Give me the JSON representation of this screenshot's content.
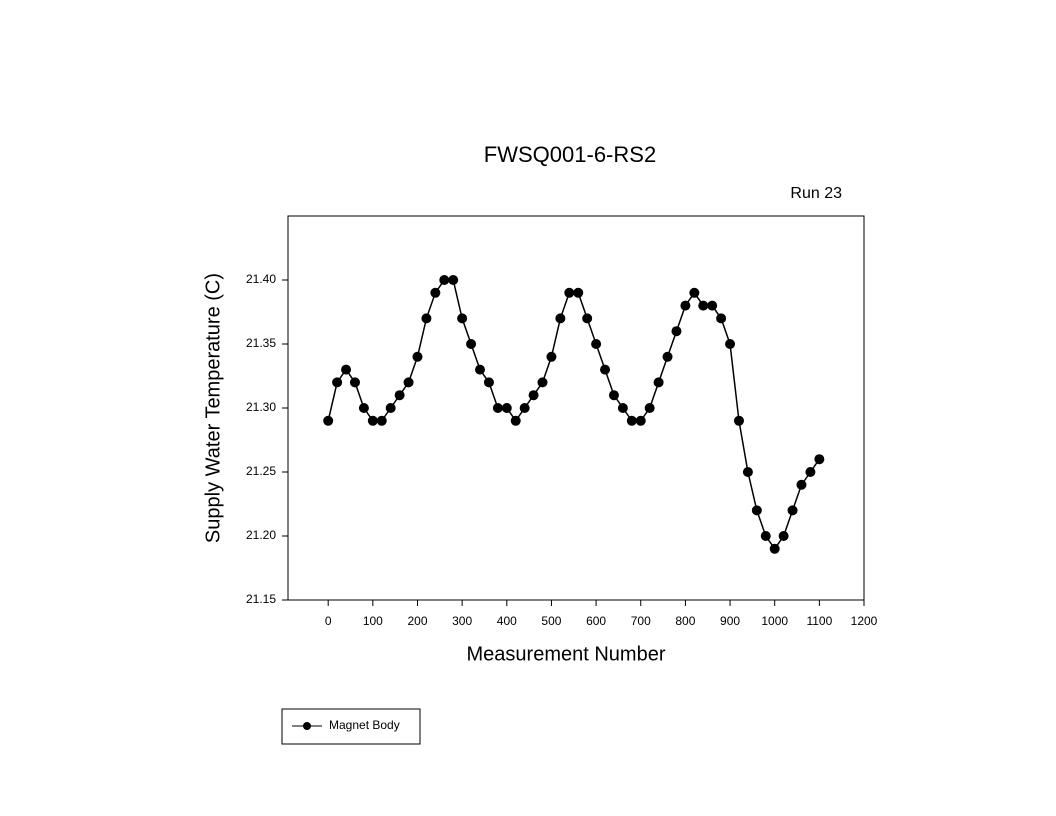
{
  "chart_data": {
    "type": "line",
    "title": "FWSQ001-6-RS2",
    "subtitle": "Run 23",
    "x_label": "Measurement Number",
    "y_label": "Supply Water Temperature (C)",
    "x": [
      0,
      20,
      40,
      60,
      80,
      100,
      120,
      140,
      160,
      180,
      200,
      220,
      240,
      260,
      280,
      300,
      320,
      340,
      360,
      380,
      400,
      420,
      440,
      460,
      480,
      500,
      520,
      540,
      560,
      580,
      600,
      620,
      640,
      660,
      680,
      700,
      720,
      740,
      760,
      780,
      800,
      820,
      840,
      860,
      880,
      900,
      920,
      940,
      960,
      980,
      1000,
      1020,
      1040,
      1060,
      1080,
      1100
    ],
    "series": [
      {
        "name": "Magnet Body",
        "color": "#000000",
        "values": [
          21.29,
          21.32,
          21.33,
          21.32,
          21.3,
          21.29,
          21.29,
          21.3,
          21.31,
          21.32,
          21.34,
          21.37,
          21.39,
          21.4,
          21.4,
          21.37,
          21.35,
          21.33,
          21.32,
          21.3,
          21.3,
          21.29,
          21.3,
          21.31,
          21.32,
          21.34,
          21.37,
          21.39,
          21.39,
          21.37,
          21.35,
          21.33,
          21.31,
          21.3,
          21.29,
          21.29,
          21.3,
          21.32,
          21.34,
          21.36,
          21.38,
          21.39,
          21.38,
          21.38,
          21.37,
          21.35,
          21.29,
          21.25,
          21.22,
          21.2,
          21.19,
          21.2,
          21.22,
          21.24,
          21.25,
          21.26
        ]
      }
    ],
    "xlim": [
      -90,
      1200
    ],
    "xticks": [
      0,
      100,
      200,
      300,
      400,
      500,
      600,
      700,
      800,
      900,
      1000,
      1100,
      1200
    ],
    "ylim": [
      21.15,
      21.45
    ],
    "yticks": [
      21.15,
      {
        "value": 21.2,
        "label": "21.20"
      },
      21.25,
      {
        "value": 21.3,
        "label": "21.30"
      },
      21.35,
      {
        "value": 21.4,
        "label": "21.40"
      }
    ],
    "grid": false,
    "legend_position": "bottom-left"
  }
}
